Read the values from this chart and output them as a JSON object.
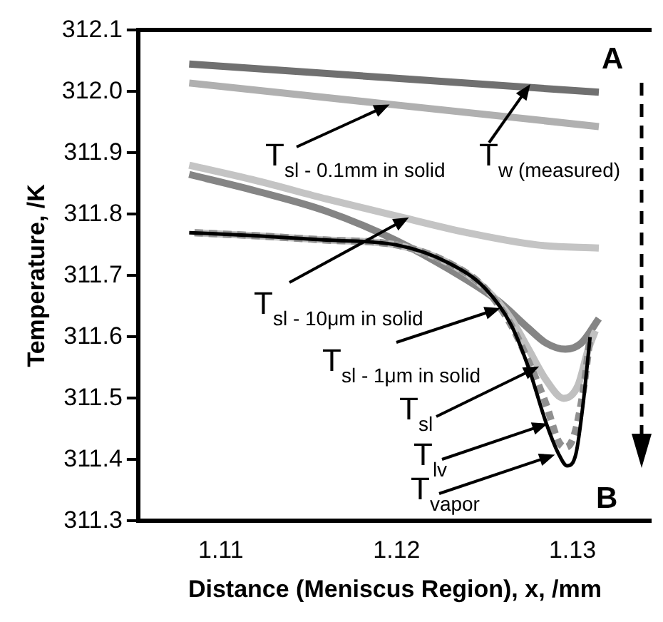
{
  "chart_data": {
    "type": "line",
    "xlabel": "Distance (Meniscus Region), x, /mm",
    "ylabel": "Temperature, /K",
    "xlim": [
      1.1053,
      1.1345
    ],
    "xticks": [
      1.11,
      1.12,
      1.13
    ],
    "ylim": [
      311.3,
      312.1
    ],
    "yticks": [
      311.3,
      311.4,
      311.5,
      311.6,
      311.7,
      311.8,
      311.9,
      {
        "value": 312,
        "label": "312.0"
      },
      312.1
    ],
    "grid": false,
    "legend": false,
    "marker": "none",
    "series": [
      {
        "color": "#707070",
        "x": [
          1.1082,
          1.1315
        ],
        "values": [
          312.045,
          311.999
        ]
      },
      {
        "color": "#b0b0b0",
        "x": [
          1.1082,
          1.1315
        ],
        "values": [
          312.014,
          311.943
        ]
      },
      {
        "color": "#c4c4c4",
        "x": [
          1.1082,
          1.112,
          1.116,
          1.12,
          1.124,
          1.128,
          1.1315
        ],
        "values": [
          311.88,
          311.855,
          311.825,
          311.797,
          311.77,
          311.75,
          311.745
        ]
      },
      {
        "color": "#858585",
        "x": [
          1.1082,
          1.112,
          1.116,
          1.12,
          1.123,
          1.1258,
          1.1275,
          1.1285,
          1.1296,
          1.1305,
          1.1315
        ],
        "values": [
          311.865,
          311.838,
          311.805,
          311.757,
          311.71,
          311.658,
          311.614,
          311.59,
          311.58,
          311.59,
          311.63
        ]
      },
      {
        "color": "#c0c0c0",
        "x": [
          1.1085,
          1.112,
          1.116,
          1.12,
          1.123,
          1.125,
          1.1265,
          1.1275,
          1.1285,
          1.1295,
          1.1303,
          1.1309,
          1.1313
        ],
        "values": [
          311.77,
          311.765,
          311.758,
          311.75,
          311.72,
          311.68,
          311.63,
          311.58,
          311.53,
          311.5,
          311.52,
          311.58,
          311.61
        ]
      },
      {
        "color": "#909090",
        "line_style": "dashed",
        "x": [
          1.1085,
          1.112,
          1.116,
          1.12,
          1.123,
          1.125,
          1.1265,
          1.1275,
          1.1285,
          1.1292,
          1.1296,
          1.1301,
          1.1306,
          1.131
        ],
        "values": [
          311.77,
          311.765,
          311.758,
          311.75,
          311.72,
          311.68,
          311.62,
          311.56,
          311.49,
          311.43,
          311.42,
          311.44,
          311.51,
          311.6
        ]
      },
      {
        "color": "#000000",
        "x": [
          1.1082,
          1.112,
          1.116,
          1.12,
          1.123,
          1.125,
          1.1265,
          1.1275,
          1.1285,
          1.1292,
          1.1297,
          1.1302,
          1.1306,
          1.131
        ],
        "values": [
          311.77,
          311.765,
          311.758,
          311.75,
          311.72,
          311.68,
          311.62,
          311.55,
          311.46,
          311.41,
          311.39,
          311.41,
          311.49,
          311.6
        ]
      }
    ],
    "annotations": [
      {
        "text": "T$_{sl - 0.1mm in solid}$",
        "x": 1.1196,
        "y": 311.979
      },
      {
        "text": "T$_{w (measured)}$",
        "x": 1.1276,
        "y": 312.012
      },
      {
        "text": "T$_{sl - 10μm in solid}$",
        "x": 1.1207,
        "y": 311.795
      },
      {
        "text": "T$_{sl - 1μm in solid}$",
        "x": 1.1259,
        "y": 311.647
      },
      {
        "text": "T$_{sl}$",
        "x": 1.1281,
        "y": 311.552
      },
      {
        "text": "T$_{lv}$",
        "x": 1.1286,
        "y": 311.459
      },
      {
        "text": "T$_{vapor}$",
        "x": 1.129,
        "y": 311.408
      },
      "A",
      "B"
    ]
  }
}
